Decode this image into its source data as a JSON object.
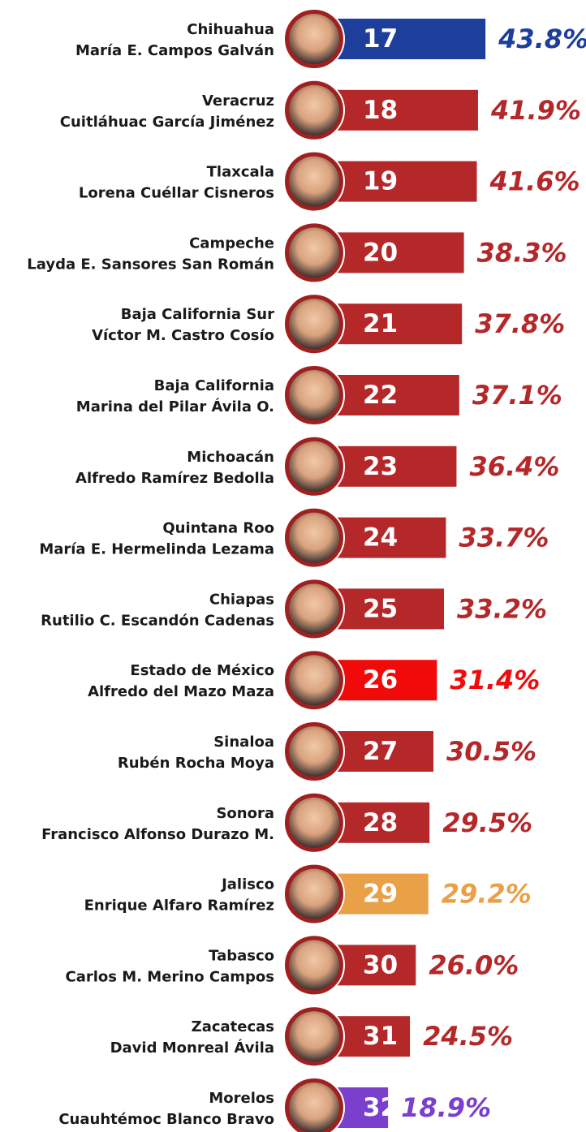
{
  "chart_data": {
    "type": "bar",
    "orientation": "horizontal",
    "states": [
      "Chihuahua",
      "Veracruz",
      "Tlaxcala",
      "Campeche",
      "Baja California Sur",
      "Baja California",
      "Michoacán",
      "Quintana Roo",
      "Chiapas",
      "Estado de México",
      "Sinaloa",
      "Sonora",
      "Jalisco",
      "Tabasco",
      "Zacatecas",
      "Morelos"
    ],
    "governors": [
      "María E. Campos Galván",
      "Cuitláhuac García Jiménez",
      "Lorena Cuéllar Cisneros",
      "Layda E. Sansores San Román",
      "Víctor M. Castro Cosío",
      "Marina del Pilar Ávila O.",
      "Alfredo Ramírez Bedolla",
      "María E. Hermelinda Lezama",
      "Rutilio C. Escandón Cadenas",
      "Alfredo del Mazo Maza",
      "Rubén Rocha Moya",
      "Francisco Alfonso Durazo M.",
      "Enrique Alfaro Ramírez",
      "Carlos M. Merino Campos",
      "David Monreal Ávila",
      "Cuauhtémoc Blanco Bravo"
    ],
    "ranks": [
      "17",
      "18",
      "19",
      "20",
      "21",
      "22",
      "23",
      "24",
      "25",
      "26",
      "27",
      "28",
      "29",
      "30",
      "31",
      "32"
    ],
    "values": [
      43.8,
      41.9,
      41.6,
      38.3,
      37.8,
      37.1,
      36.4,
      33.7,
      33.2,
      31.4,
      30.5,
      29.5,
      29.2,
      26.0,
      24.5,
      18.9
    ],
    "value_labels": [
      "43.8%",
      "41.9%",
      "41.6%",
      "38.3%",
      "37.8%",
      "37.1%",
      "36.4%",
      "33.7%",
      "33.2%",
      "31.4%",
      "30.5%",
      "29.5%",
      "29.2%",
      "26.0%",
      "24.5%",
      "18.9%"
    ],
    "colors": [
      "#1d3e9b",
      "#b5282a",
      "#b5282a",
      "#b5282a",
      "#b5282a",
      "#b5282a",
      "#b5282a",
      "#b5282a",
      "#b5282a",
      "#f00a0a",
      "#b5282a",
      "#b5282a",
      "#e9a046",
      "#b5282a",
      "#b5282a",
      "#7a3fcc"
    ]
  }
}
